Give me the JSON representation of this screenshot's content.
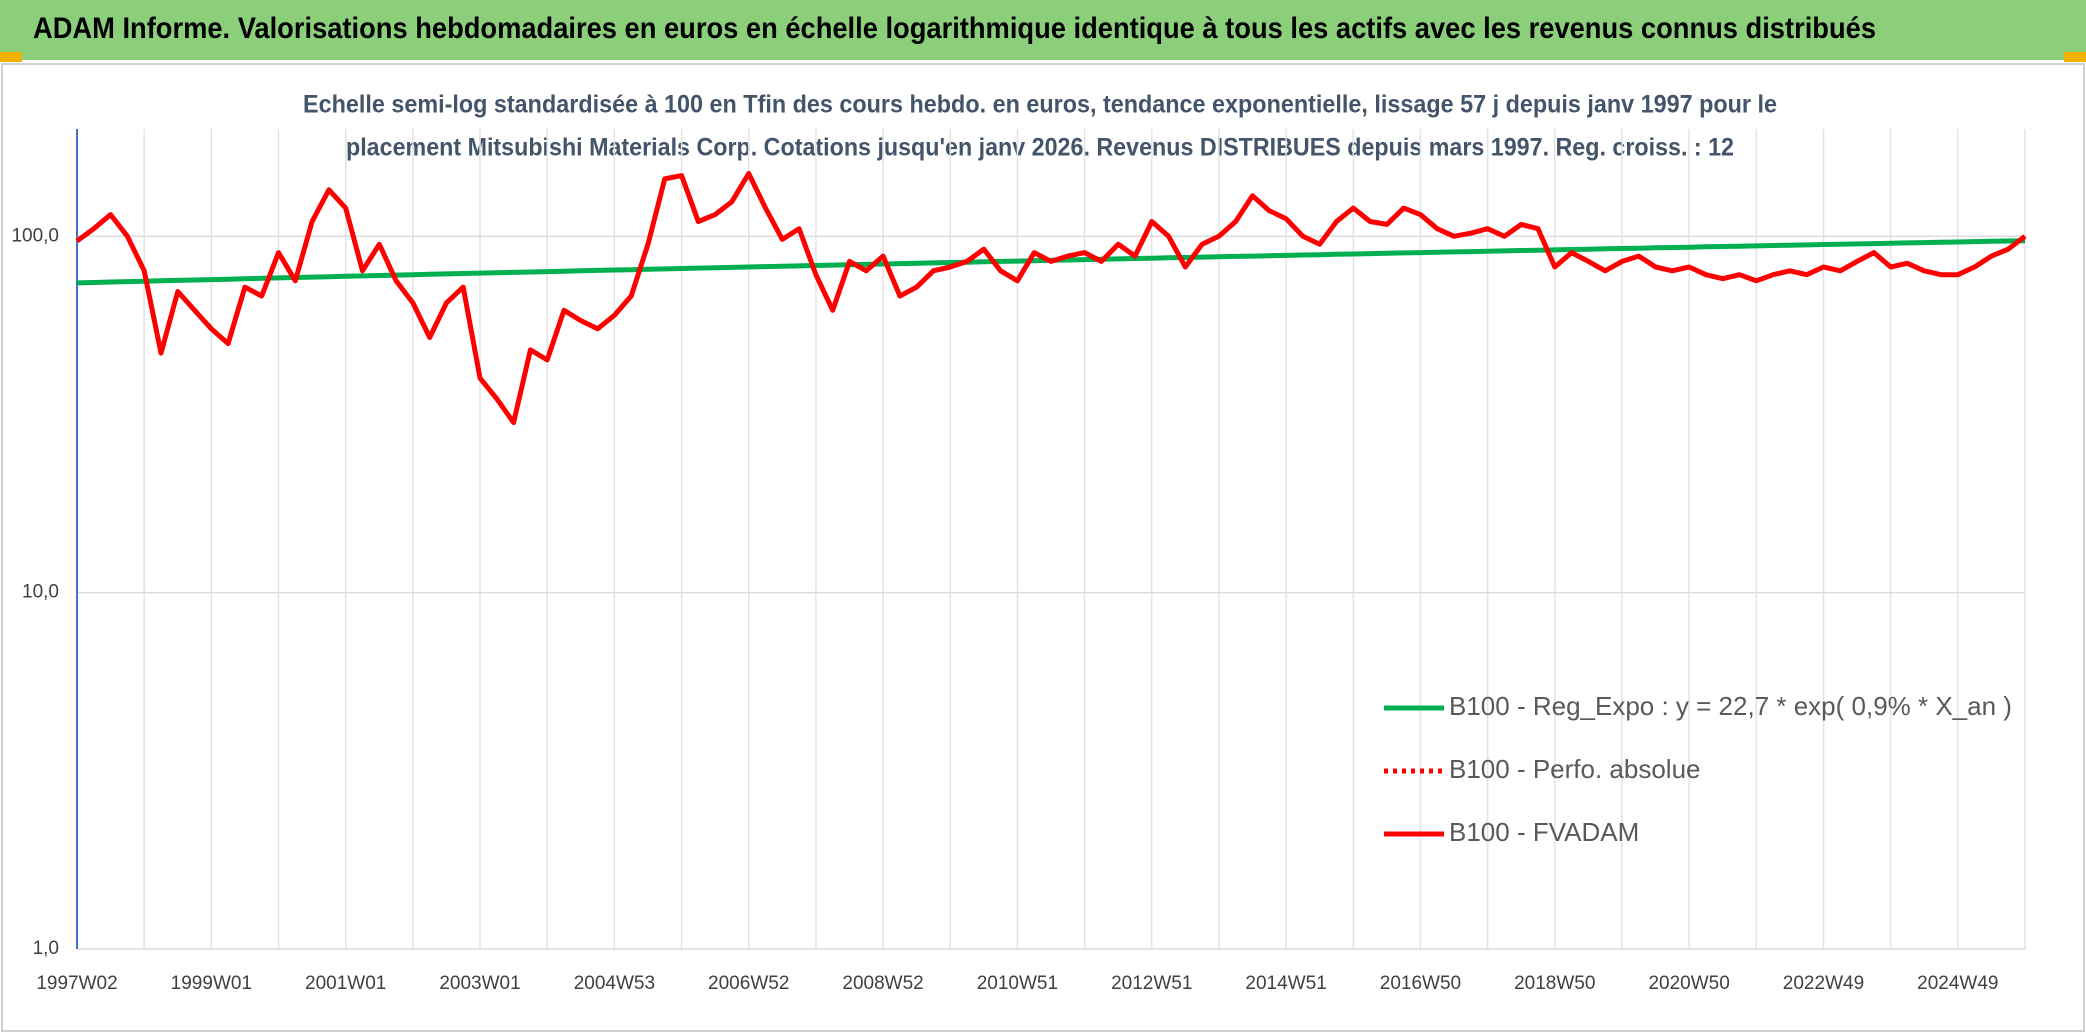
{
  "chart_data": {
    "type": "line",
    "title": "ADAM Informe. Valorisations hebdomadaires en euros en échelle logarithmique identique à tous les actifs avec les revenus connus distribués",
    "subtitle": [
      "Echelle semi-log standardisée à 100 en Tfin des cours hebdo. en euros, tendance exponentielle, lissage 57 j depuis janv 1997 pour le",
      "placement Mitsubishi Materials Corp. Cotations jusqu'en janv 2026. Revenus DISTRIBUES depuis mars 1997. Reg. croiss. : 12"
    ],
    "categories": [
      "1997W02",
      null,
      null,
      null,
      null,
      null,
      null,
      null,
      "1999W01",
      null,
      null,
      null,
      null,
      null,
      null,
      null,
      "2001W01",
      null,
      null,
      null,
      null,
      null,
      null,
      null,
      "2003W01",
      null,
      null,
      null,
      null,
      null,
      null,
      null,
      "2004W53",
      null,
      null,
      null,
      null,
      null,
      null,
      null,
      "2006W52",
      null,
      null,
      null,
      null,
      null,
      null,
      null,
      "2008W52",
      null,
      null,
      null,
      null,
      null,
      null,
      null,
      "2010W51",
      null,
      null,
      null,
      null,
      null,
      null,
      null,
      "2012W51",
      null,
      null,
      null,
      null,
      null,
      null,
      null,
      "2014W51",
      null,
      null,
      null,
      null,
      null,
      null,
      null,
      "2016W50",
      null,
      null,
      null,
      null,
      null,
      null,
      null,
      "2018W50",
      null,
      null,
      null,
      null,
      null,
      null,
      null,
      "2020W50",
      null,
      null,
      null,
      null,
      null,
      null,
      null,
      "2022W49",
      null,
      null,
      null,
      null,
      null,
      null,
      null,
      "2024W49",
      null,
      null,
      null,
      null
    ],
    "series": [
      {
        "name": "B100 - Reg_Expo : y = 22,7 * exp( 0,9% *  X_an )",
        "color": "#00b050",
        "style": "solid",
        "values": [
          74.0,
          74.2,
          74.4,
          74.6,
          74.8,
          75.0,
          75.2,
          75.4,
          75.6,
          75.8,
          76.0,
          76.2,
          76.4,
          76.6,
          76.8,
          77.0,
          77.2,
          77.4,
          77.6,
          77.8,
          78.0,
          78.2,
          78.4,
          78.6,
          78.8,
          79.0,
          79.2,
          79.4,
          79.6,
          79.8,
          80.0,
          80.2,
          80.4,
          80.6,
          80.8,
          81.0,
          81.2,
          81.4,
          81.6,
          81.8,
          82.0,
          82.2,
          82.4,
          82.6,
          82.8,
          83.0,
          83.2,
          83.4,
          83.6,
          83.8,
          84.0,
          84.2,
          84.4,
          84.6,
          84.8,
          85.0,
          85.2,
          85.4,
          85.6,
          85.8,
          86.0,
          86.2,
          86.4,
          86.6,
          86.8,
          87.0,
          87.2,
          87.4,
          87.6,
          87.8,
          88.0,
          88.2,
          88.4,
          88.6,
          88.8,
          89.0,
          89.2,
          89.4,
          89.6,
          89.8,
          90.0,
          90.2,
          90.4,
          90.6,
          90.8,
          91.0,
          91.2,
          91.4,
          91.6,
          91.8,
          92.0,
          92.2,
          92.4,
          92.6,
          92.8,
          93.0,
          93.2,
          93.4,
          93.6,
          93.8,
          94.0,
          94.2,
          94.4,
          94.6,
          94.8,
          95.0,
          95.2,
          95.4,
          95.6,
          95.8,
          96.0,
          96.2,
          96.4,
          96.6,
          96.8,
          97.0,
          97.2
        ]
      },
      {
        "name": "B100 - Perfo. absolue",
        "color": "#ff0000",
        "style": "dotted",
        "values": [
          null,
          null,
          null,
          null,
          null,
          null,
          null,
          null,
          null,
          null,
          null,
          null,
          null,
          null,
          null,
          null,
          null,
          null,
          null,
          null,
          null,
          null,
          null,
          null,
          null,
          null,
          null,
          null,
          null,
          null,
          null,
          null,
          null,
          null,
          null,
          null,
          null,
          null,
          null,
          null,
          null,
          null,
          null,
          null,
          null,
          null,
          null,
          null,
          null,
          null,
          null,
          null,
          null,
          null,
          null,
          null,
          null,
          null,
          null,
          null,
          null,
          null,
          null,
          null,
          null,
          null,
          null,
          null,
          null,
          null,
          null,
          null,
          null,
          null,
          null,
          null,
          null,
          null,
          null,
          null,
          null,
          null,
          null,
          null,
          null,
          null,
          null,
          null,
          null,
          null,
          null,
          null,
          null,
          null,
          null,
          null,
          null,
          null,
          null,
          null,
          null,
          null,
          null,
          null,
          null,
          null,
          null,
          null,
          null,
          null,
          null,
          null,
          null,
          null,
          null,
          null,
          null
        ]
      },
      {
        "name": "B100 - FVADAM",
        "color": "#ff0000",
        "style": "solid",
        "values": [
          97,
          105,
          115,
          100,
          80,
          47,
          70,
          62,
          55,
          50,
          72,
          68,
          90,
          75,
          110,
          135,
          120,
          80,
          95,
          75,
          65,
          52,
          65,
          72,
          40,
          35,
          30,
          48,
          45,
          62,
          58,
          55,
          60,
          68,
          95,
          145,
          148,
          110,
          115,
          125,
          150,
          120,
          98,
          105,
          78,
          62,
          85,
          80,
          88,
          68,
          72,
          80,
          82,
          85,
          92,
          80,
          75,
          90,
          85,
          88,
          90,
          85,
          95,
          88,
          110,
          100,
          82,
          95,
          100,
          110,
          130,
          118,
          112,
          100,
          95,
          110,
          120,
          110,
          108,
          120,
          115,
          105,
          100,
          102,
          105,
          100,
          108,
          105,
          82,
          90,
          85,
          80,
          85,
          88,
          82,
          80,
          82,
          78,
          76,
          78,
          75,
          78,
          80,
          78,
          82,
          80,
          85,
          90,
          82,
          84,
          80,
          78,
          78,
          82,
          88,
          92,
          100
        ]
      }
    ],
    "log_scale": true,
    "ylim": [
      1,
      200
    ],
    "yticks": [
      {
        "value": 1,
        "label": "1,0"
      },
      {
        "value": 10,
        "label": "10,0"
      },
      {
        "value": 100,
        "label": "100,0"
      }
    ],
    "grid": true,
    "legend": "lower right"
  }
}
